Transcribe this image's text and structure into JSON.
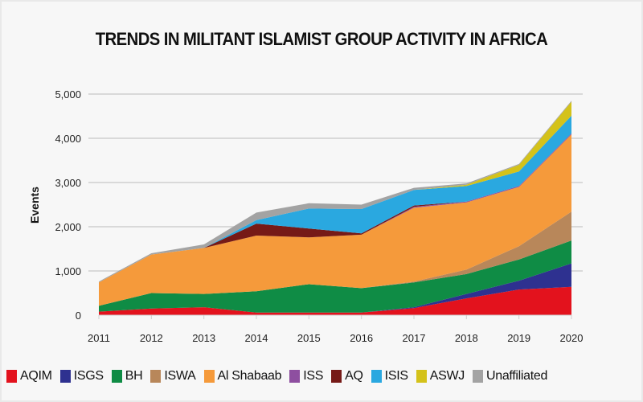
{
  "chart_data": {
    "type": "area",
    "stacked": true,
    "title": "TRENDS IN MILITANT ISLAMIST GROUP ACTIVITY IN AFRICA",
    "xlabel": "",
    "ylabel": "Events",
    "x": [
      2011,
      2012,
      2013,
      2014,
      2015,
      2016,
      2017,
      2018,
      2019,
      2020
    ],
    "x_tick_labels": [
      "2011",
      "2012",
      "2013",
      "2014",
      "2015",
      "2016",
      "2017",
      "2018",
      "2019",
      "2020"
    ],
    "ylim": [
      0,
      5000
    ],
    "y_ticks": [
      0,
      1000,
      2000,
      3000,
      4000,
      5000
    ],
    "y_tick_labels": [
      "0",
      "1,000",
      "2,000",
      "3,000",
      "4,000",
      "5,000"
    ],
    "grid": true,
    "legend_position": "bottom",
    "series": [
      {
        "name": "AQIM",
        "color": "#e3121d",
        "values": [
          80,
          150,
          180,
          60,
          60,
          60,
          160,
          380,
          580,
          640
        ]
      },
      {
        "name": "ISGS",
        "color": "#2e3190",
        "values": [
          0,
          0,
          0,
          0,
          0,
          0,
          20,
          100,
          200,
          530
        ]
      },
      {
        "name": "BH",
        "color": "#0f8c45",
        "values": [
          130,
          350,
          300,
          480,
          640,
          550,
          560,
          450,
          480,
          520
        ]
      },
      {
        "name": "ISWA",
        "color": "#b8875a",
        "values": [
          0,
          0,
          0,
          0,
          0,
          0,
          20,
          100,
          300,
          650
        ]
      },
      {
        "name": "Al Shabaab",
        "color": "#f59a3b",
        "values": [
          530,
          870,
          1040,
          1260,
          1060,
          1210,
          1670,
          1520,
          1340,
          1750
        ]
      },
      {
        "name": "ISS",
        "color": "#8e4fa0",
        "values": [
          0,
          0,
          0,
          0,
          0,
          0,
          20,
          20,
          20,
          20
        ]
      },
      {
        "name": "AQ",
        "color": "#761a17",
        "values": [
          0,
          0,
          0,
          270,
          200,
          30,
          30,
          0,
          0,
          0
        ]
      },
      {
        "name": "ISIS",
        "color": "#2aa8e0",
        "values": [
          0,
          0,
          0,
          80,
          450,
          550,
          350,
          350,
          330,
          400
        ]
      },
      {
        "name": "ASWJ",
        "color": "#d4c21a",
        "values": [
          0,
          0,
          0,
          0,
          0,
          0,
          0,
          30,
          150,
          320
        ]
      },
      {
        "name": "Unaffiliated",
        "color": "#a3a3a3",
        "values": [
          20,
          30,
          80,
          170,
          120,
          100,
          50,
          30,
          20,
          20
        ]
      }
    ]
  }
}
